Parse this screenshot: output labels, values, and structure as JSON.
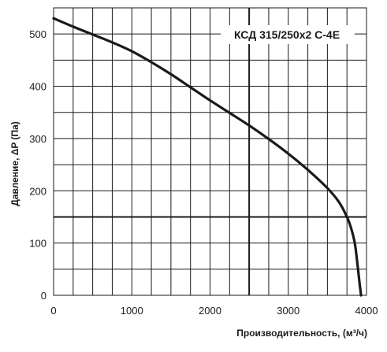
{
  "chart_data": {
    "type": "line",
    "title": "КСД 315/250х2 С-4Е",
    "xlabel": "Производительность, (м³/ч)",
    "ylabel": "Давление, ΔP (Па)",
    "xlim": [
      0,
      4000
    ],
    "ylim": [
      0,
      550
    ],
    "xticks": [
      0,
      1000,
      2000,
      3000,
      4000
    ],
    "yticks": [
      0,
      100,
      200,
      300,
      400,
      500
    ],
    "grid": true,
    "series": [
      {
        "x": [
          0,
          250,
          500,
          750,
          1000,
          1250,
          1500,
          1750,
          2000,
          2250,
          2500,
          2750,
          3000,
          3250,
          3500,
          3650,
          3750,
          3800,
          3850,
          3880,
          3910,
          3930
        ],
        "values": [
          530,
          514,
          499,
          484,
          467,
          446,
          423,
          398,
          373,
          349,
          325,
          299,
          271,
          240,
          205,
          178,
          150,
          130,
          100,
          65,
          25,
          0
        ]
      }
    ],
    "reference_lines": [
      {
        "axis": "x",
        "value": 2500
      },
      {
        "axis": "y",
        "value": 150
      }
    ],
    "colors": {
      "curve": "#1a1a1a",
      "grid": "#1a1a1a",
      "background": "#ffffff"
    }
  }
}
